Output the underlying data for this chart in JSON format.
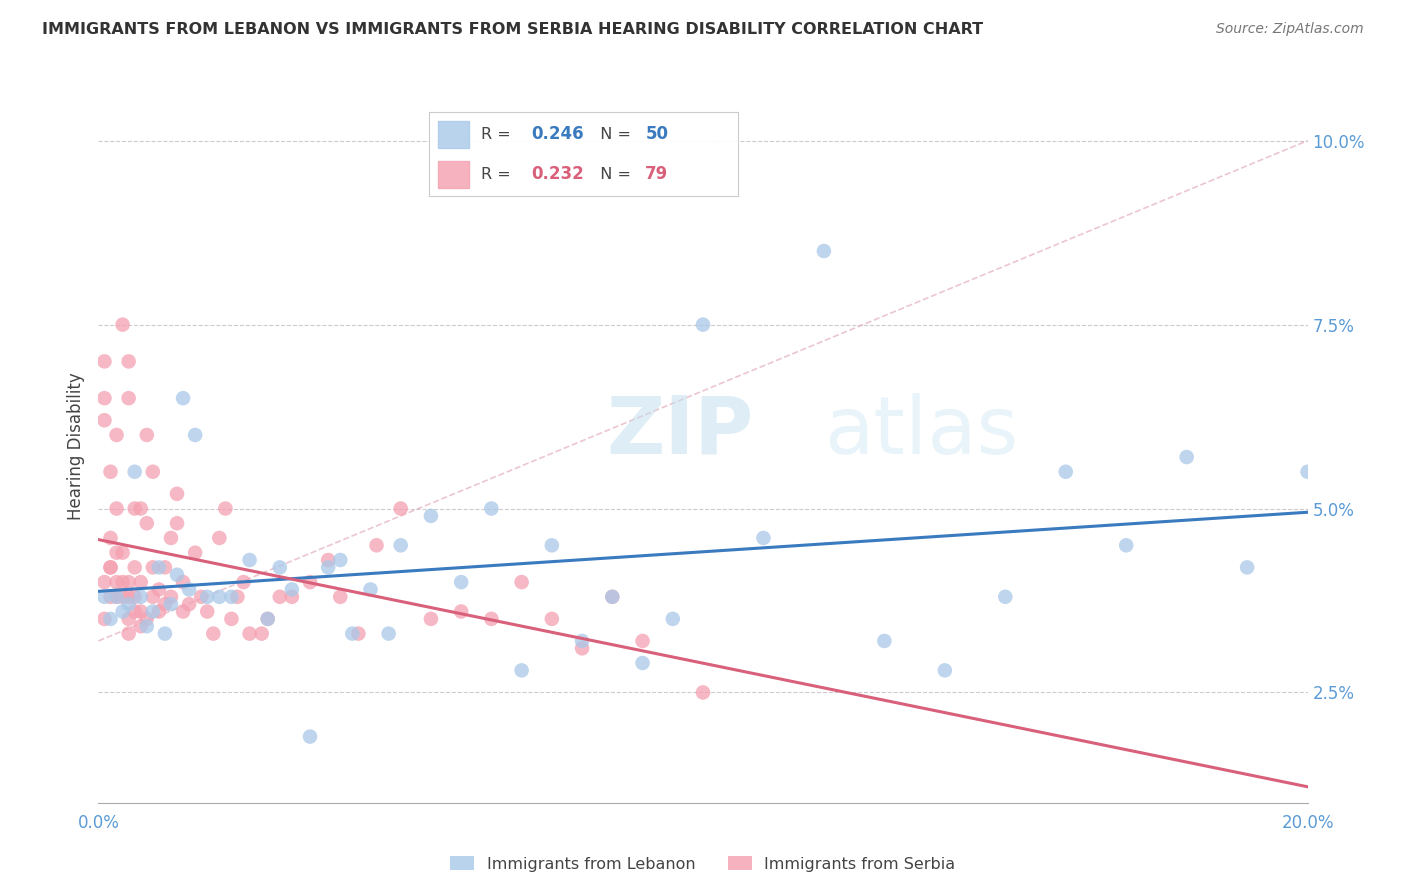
{
  "title": "IMMIGRANTS FROM LEBANON VS IMMIGRANTS FROM SERBIA HEARING DISABILITY CORRELATION CHART",
  "source": "Source: ZipAtlas.com",
  "ylabel": "Hearing Disability",
  "xlim": [
    0.0,
    0.2
  ],
  "ylim": [
    0.01,
    0.107
  ],
  "yticks": [
    0.025,
    0.05,
    0.075,
    0.1
  ],
  "ytick_labels": [
    "2.5%",
    "5.0%",
    "7.5%",
    "10.0%"
  ],
  "xtick_labels": [
    "0.0%",
    "20.0%"
  ],
  "color_lebanon": "#a8c8e8",
  "color_serbia": "#f4a0b0",
  "trend_lebanon_color": "#3a7abf",
  "trend_serbia_color": "#d9607a",
  "R_lebanon": 0.246,
  "N_lebanon": 50,
  "R_serbia": 0.232,
  "N_serbia": 79,
  "watermark_zip": "ZIP",
  "watermark_atlas": "atlas",
  "lebanon_x": [
    0.001,
    0.002,
    0.003,
    0.004,
    0.005,
    0.006,
    0.007,
    0.008,
    0.009,
    0.01,
    0.011,
    0.012,
    0.013,
    0.014,
    0.015,
    0.016,
    0.018,
    0.02,
    0.022,
    0.025,
    0.028,
    0.03,
    0.032,
    0.035,
    0.038,
    0.04,
    0.042,
    0.045,
    0.048,
    0.05,
    0.055,
    0.06,
    0.065,
    0.07,
    0.075,
    0.08,
    0.085,
    0.09,
    0.095,
    0.1,
    0.11,
    0.12,
    0.13,
    0.14,
    0.15,
    0.16,
    0.17,
    0.18,
    0.19,
    0.2
  ],
  "lebanon_y": [
    0.038,
    0.035,
    0.038,
    0.036,
    0.037,
    0.055,
    0.038,
    0.034,
    0.036,
    0.042,
    0.033,
    0.037,
    0.041,
    0.065,
    0.039,
    0.06,
    0.038,
    0.038,
    0.038,
    0.043,
    0.035,
    0.042,
    0.039,
    0.019,
    0.042,
    0.043,
    0.033,
    0.039,
    0.033,
    0.045,
    0.049,
    0.04,
    0.05,
    0.028,
    0.045,
    0.032,
    0.038,
    0.029,
    0.035,
    0.075,
    0.046,
    0.085,
    0.032,
    0.028,
    0.038,
    0.055,
    0.045,
    0.057,
    0.042,
    0.055
  ],
  "serbia_x": [
    0.001,
    0.001,
    0.001,
    0.001,
    0.001,
    0.002,
    0.002,
    0.002,
    0.002,
    0.002,
    0.003,
    0.003,
    0.003,
    0.003,
    0.003,
    0.004,
    0.004,
    0.004,
    0.004,
    0.005,
    0.005,
    0.005,
    0.005,
    0.005,
    0.005,
    0.006,
    0.006,
    0.006,
    0.006,
    0.007,
    0.007,
    0.007,
    0.007,
    0.008,
    0.008,
    0.008,
    0.009,
    0.009,
    0.009,
    0.01,
    0.01,
    0.011,
    0.011,
    0.012,
    0.012,
    0.013,
    0.013,
    0.014,
    0.014,
    0.015,
    0.016,
    0.017,
    0.018,
    0.019,
    0.02,
    0.021,
    0.022,
    0.023,
    0.024,
    0.025,
    0.027,
    0.028,
    0.03,
    0.032,
    0.035,
    0.038,
    0.04,
    0.043,
    0.046,
    0.05,
    0.055,
    0.06,
    0.065,
    0.07,
    0.075,
    0.08,
    0.085,
    0.09,
    0.1
  ],
  "serbia_y": [
    0.062,
    0.065,
    0.07,
    0.04,
    0.035,
    0.042,
    0.055,
    0.038,
    0.042,
    0.046,
    0.038,
    0.04,
    0.044,
    0.05,
    0.06,
    0.038,
    0.04,
    0.044,
    0.075,
    0.033,
    0.035,
    0.038,
    0.04,
    0.065,
    0.07,
    0.036,
    0.038,
    0.042,
    0.05,
    0.034,
    0.036,
    0.04,
    0.05,
    0.035,
    0.048,
    0.06,
    0.038,
    0.042,
    0.055,
    0.036,
    0.039,
    0.037,
    0.042,
    0.038,
    0.046,
    0.048,
    0.052,
    0.036,
    0.04,
    0.037,
    0.044,
    0.038,
    0.036,
    0.033,
    0.046,
    0.05,
    0.035,
    0.038,
    0.04,
    0.033,
    0.033,
    0.035,
    0.038,
    0.038,
    0.04,
    0.043,
    0.038,
    0.033,
    0.045,
    0.05,
    0.035,
    0.036,
    0.035,
    0.04,
    0.035,
    0.031,
    0.038,
    0.032,
    0.025
  ]
}
